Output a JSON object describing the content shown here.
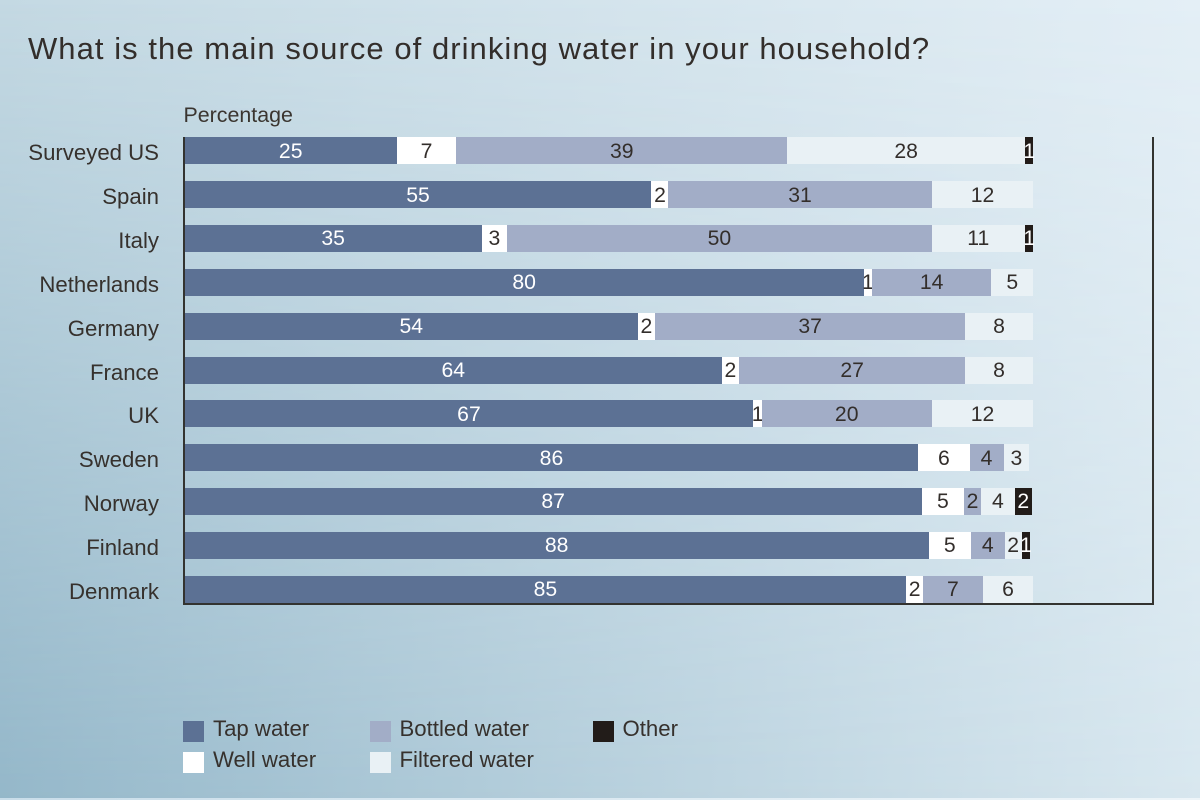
{
  "title": "What is the main source of drinking water in your household?",
  "axis_label": "Percentage",
  "colors": {
    "tap": "#5c7194",
    "well": "#ffffff",
    "bottled": "#a2adc7",
    "filtered": "#e9f1f5",
    "other": "#221c19",
    "label_on_dark": "#ffffff",
    "label_on_light": "#332e2b",
    "axis_line": "#333330",
    "text": "#36312d",
    "background_top_right": "#e5f0f7",
    "background_bottom_left": "#95b7c9"
  },
  "legend": {
    "rows": [
      [
        {
          "label": "Tap water",
          "series": "tap"
        },
        {
          "label": "Bottled water",
          "series": "bottled"
        },
        {
          "label": "Other",
          "series": "other"
        }
      ],
      [
        {
          "label": "Well water",
          "series": "well"
        },
        {
          "label": "Filtered water",
          "series": "filtered"
        }
      ]
    ]
  },
  "chart_data": {
    "type": "bar",
    "orientation": "horizontal",
    "stacked": true,
    "title": "What is the main source of drinking water in your household?",
    "xlabel": "Percentage",
    "x_axis_max": 114,
    "grid": false,
    "legend_position": "bottom",
    "series_names": [
      "Tap water",
      "Well water",
      "Bottled water",
      "Filtered water",
      "Other"
    ],
    "series_keys": [
      "tap",
      "well",
      "bottled",
      "filtered",
      "other"
    ],
    "categories": [
      "Surveyed US",
      "Spain",
      "Italy",
      "Netherlands",
      "Germany",
      "France",
      "UK",
      "Sweden",
      "Norway",
      "Finland",
      "Denmark"
    ],
    "rows": [
      {
        "country": "Surveyed US",
        "values": [
          25,
          7,
          39,
          28,
          1
        ],
        "drawn_total_pct": 100
      },
      {
        "country": "Spain",
        "values": [
          55,
          2,
          31,
          12,
          0
        ],
        "drawn_total_pct": 100
      },
      {
        "country": "Italy",
        "values": [
          35,
          3,
          50,
          11,
          1
        ],
        "drawn_total_pct": 100
      },
      {
        "country": "Netherlands",
        "values": [
          80,
          1,
          14,
          5,
          0
        ],
        "drawn_total_pct": 100
      },
      {
        "country": "Germany",
        "values": [
          54,
          2,
          37,
          8,
          0
        ],
        "drawn_total_pct": 99.9
      },
      {
        "country": "France",
        "values": [
          64,
          2,
          27,
          8,
          0
        ],
        "drawn_total_pct": 99.9
      },
      {
        "country": "UK",
        "values": [
          67,
          1,
          20,
          12,
          0
        ],
        "drawn_total_pct": 100
      },
      {
        "country": "Sweden",
        "values": [
          86,
          6,
          4,
          3,
          0
        ],
        "drawn_total_pct": 99.5
      },
      {
        "country": "Norway",
        "values": [
          87,
          5,
          2,
          4,
          2
        ],
        "drawn_total_pct": 99.8
      },
      {
        "country": "Finland",
        "values": [
          88,
          5,
          4,
          2,
          1
        ],
        "drawn_total_pct": 99.6
      },
      {
        "country": "Denmark",
        "values": [
          85,
          2,
          7,
          6,
          0
        ],
        "drawn_total_pct": 100
      }
    ]
  }
}
